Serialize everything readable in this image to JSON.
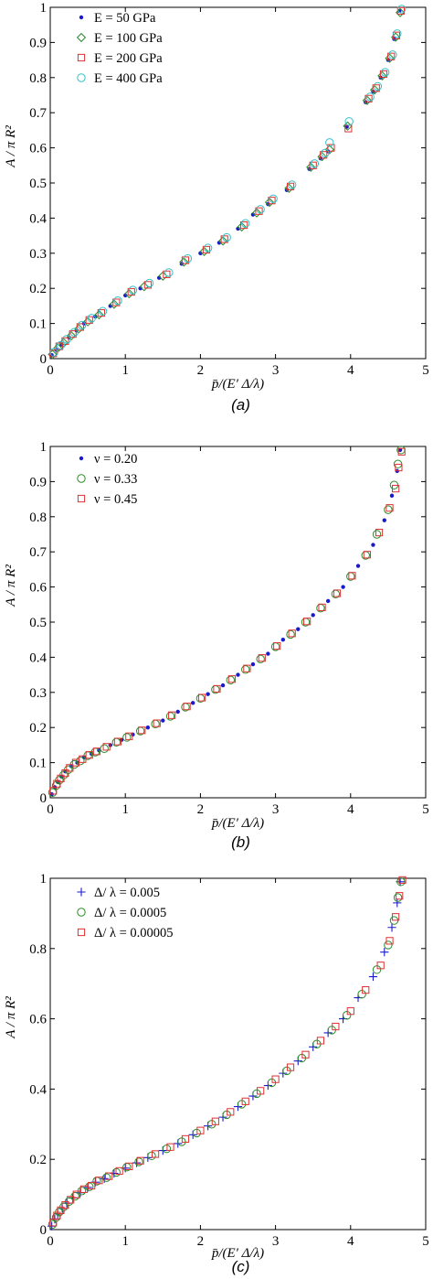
{
  "panels": [
    {
      "caption": "(a)",
      "chart_data": {
        "type": "scatter",
        "xlabel": "p̄/(E′ Δ/λ)",
        "ylabel": "A / π R²",
        "xlim": [
          0,
          5
        ],
        "ylim": [
          0,
          1
        ],
        "xticks": [
          "0",
          "1",
          "2",
          "3",
          "4",
          "5"
        ],
        "yticks": [
          "0",
          "0.1",
          "0.2",
          "0.3",
          "0.4",
          "0.5",
          "0.6",
          "0.7",
          "0.8",
          "0.9",
          "1"
        ],
        "legend_position": "top-left",
        "grid": false,
        "series": [
          {
            "name": "E = 50 GPa",
            "marker": "dot",
            "color": "#1a1acc",
            "x": [
              0.02,
              0.08,
              0.15,
              0.25,
              0.35,
              0.45,
              0.6,
              0.8,
              1.0,
              1.2,
              1.45,
              1.75,
              2.0,
              2.25,
              2.5,
              2.7,
              2.9,
              3.15,
              3.45,
              3.6,
              3.7,
              3.95,
              4.2,
              4.3,
              4.4,
              4.5,
              4.58,
              4.65
            ],
            "y": [
              0.01,
              0.025,
              0.04,
              0.06,
              0.08,
              0.1,
              0.12,
              0.15,
              0.18,
              0.2,
              0.23,
              0.27,
              0.3,
              0.33,
              0.37,
              0.41,
              0.44,
              0.48,
              0.54,
              0.57,
              0.59,
              0.66,
              0.73,
              0.76,
              0.8,
              0.85,
              0.91,
              0.99
            ]
          },
          {
            "name": "E = 100 GPa",
            "marker": "diamond",
            "color": "#2a8a2a",
            "x": [
              0.03,
              0.1,
              0.18,
              0.28,
              0.38,
              0.5,
              0.65,
              0.85,
              1.05,
              1.25,
              1.5,
              1.78,
              2.05,
              2.3,
              2.55,
              2.75,
              2.92,
              3.18,
              3.47,
              3.62,
              3.72,
              3.96,
              4.22,
              4.32,
              4.42,
              4.52,
              4.6,
              4.66
            ],
            "y": [
              0.012,
              0.03,
              0.045,
              0.065,
              0.085,
              0.105,
              0.125,
              0.155,
              0.185,
              0.205,
              0.235,
              0.275,
              0.305,
              0.335,
              0.375,
              0.415,
              0.445,
              0.485,
              0.545,
              0.575,
              0.595,
              0.662,
              0.735,
              0.765,
              0.805,
              0.855,
              0.915,
              0.985
            ]
          },
          {
            "name": "E = 200 GPa",
            "marker": "square",
            "color": "#e03030",
            "x": [
              0.04,
              0.12,
              0.2,
              0.3,
              0.4,
              0.52,
              0.68,
              0.88,
              1.08,
              1.3,
              1.55,
              1.8,
              2.08,
              2.32,
              2.58,
              2.78,
              2.95,
              3.2,
              3.5,
              3.64,
              3.74,
              3.97,
              4.24,
              4.34,
              4.44,
              4.54,
              4.61,
              4.67
            ],
            "y": [
              0.015,
              0.035,
              0.05,
              0.07,
              0.09,
              0.11,
              0.13,
              0.16,
              0.19,
              0.21,
              0.24,
              0.28,
              0.31,
              0.34,
              0.38,
              0.42,
              0.45,
              0.49,
              0.55,
              0.58,
              0.6,
              0.655,
              0.74,
              0.77,
              0.81,
              0.86,
              0.92,
              0.99
            ]
          },
          {
            "name": "E = 400 GPa",
            "marker": "circle",
            "color": "#30c0c8",
            "x": [
              0.05,
              0.14,
              0.22,
              0.32,
              0.42,
              0.55,
              0.7,
              0.9,
              1.1,
              1.32,
              1.58,
              1.83,
              2.1,
              2.35,
              2.6,
              2.8,
              2.97,
              3.22,
              3.52,
              3.66,
              3.72,
              3.98,
              4.26,
              4.36,
              4.46,
              4.56,
              4.62,
              4.68
            ],
            "y": [
              0.018,
              0.038,
              0.055,
              0.075,
              0.095,
              0.115,
              0.135,
              0.165,
              0.195,
              0.215,
              0.245,
              0.285,
              0.315,
              0.345,
              0.385,
              0.425,
              0.455,
              0.495,
              0.555,
              0.585,
              0.615,
              0.675,
              0.745,
              0.775,
              0.815,
              0.865,
              0.925,
              0.995
            ]
          }
        ]
      }
    },
    {
      "caption": "(b)",
      "chart_data": {
        "type": "scatter",
        "xlabel": "p̄/(E′ Δ/λ)",
        "ylabel": "A / π R²",
        "xlim": [
          0,
          5
        ],
        "ylim": [
          0,
          1
        ],
        "xticks": [
          "0",
          "1",
          "2",
          "3",
          "4",
          "5"
        ],
        "yticks": [
          "0",
          "0.1",
          "0.2",
          "0.3",
          "0.4",
          "0.5",
          "0.6",
          "0.7",
          "0.8",
          "0.9",
          "1"
        ],
        "legend_position": "top-left",
        "grid": false,
        "series": [
          {
            "name": "ν = 0.20",
            "marker": "dot",
            "color": "#1a1acc",
            "x": [
              0.02,
              0.06,
              0.1,
              0.15,
              0.2,
              0.28,
              0.36,
              0.45,
              0.55,
              0.65,
              0.8,
              0.95,
              1.1,
              1.3,
              1.5,
              1.7,
              1.9,
              2.1,
              2.3,
              2.5,
              2.7,
              2.9,
              3.1,
              3.3,
              3.5,
              3.7,
              3.9,
              4.1,
              4.3,
              4.45,
              4.55,
              4.62,
              4.66
            ],
            "y": [
              0.01,
              0.03,
              0.045,
              0.06,
              0.075,
              0.09,
              0.1,
              0.115,
              0.125,
              0.135,
              0.15,
              0.165,
              0.18,
              0.2,
              0.22,
              0.245,
              0.27,
              0.295,
              0.32,
              0.35,
              0.38,
              0.41,
              0.45,
              0.48,
              0.52,
              0.56,
              0.6,
              0.66,
              0.72,
              0.79,
              0.86,
              0.93,
              0.99
            ]
          },
          {
            "name": "ν = 0.33",
            "marker": "circle",
            "color": "#2a8a2a",
            "x": [
              0.03,
              0.08,
              0.12,
              0.18,
              0.24,
              0.32,
              0.4,
              0.5,
              0.6,
              0.72,
              0.88,
              1.02,
              1.2,
              1.4,
              1.6,
              1.8,
              2.0,
              2.2,
              2.4,
              2.6,
              2.8,
              3.0,
              3.2,
              3.4,
              3.6,
              3.8,
              4.0,
              4.2,
              4.35,
              4.5,
              4.58,
              4.63,
              4.67
            ],
            "y": [
              0.015,
              0.035,
              0.05,
              0.065,
              0.08,
              0.095,
              0.105,
              0.12,
              0.13,
              0.14,
              0.158,
              0.172,
              0.19,
              0.21,
              0.232,
              0.258,
              0.283,
              0.308,
              0.335,
              0.365,
              0.395,
              0.43,
              0.465,
              0.5,
              0.54,
              0.58,
              0.63,
              0.69,
              0.75,
              0.82,
              0.89,
              0.95,
              0.99
            ]
          },
          {
            "name": "ν = 0.45",
            "marker": "square",
            "color": "#e03030",
            "x": [
              0.04,
              0.09,
              0.14,
              0.2,
              0.26,
              0.34,
              0.43,
              0.52,
              0.62,
              0.75,
              0.9,
              1.05,
              1.22,
              1.42,
              1.62,
              1.82,
              2.02,
              2.22,
              2.42,
              2.62,
              2.82,
              3.02,
              3.22,
              3.42,
              3.62,
              3.82,
              4.02,
              4.22,
              4.38,
              4.52,
              4.6,
              4.64,
              4.68
            ],
            "y": [
              0.02,
              0.04,
              0.055,
              0.07,
              0.085,
              0.1,
              0.11,
              0.122,
              0.132,
              0.145,
              0.16,
              0.175,
              0.192,
              0.212,
              0.235,
              0.26,
              0.285,
              0.31,
              0.338,
              0.368,
              0.398,
              0.432,
              0.468,
              0.502,
              0.542,
              0.582,
              0.632,
              0.692,
              0.755,
              0.825,
              0.88,
              0.94,
              0.985
            ]
          }
        ]
      }
    },
    {
      "caption": "(c)",
      "chart_data": {
        "type": "scatter",
        "xlabel": "p̄/(E′ Δ/λ)",
        "ylabel": "A / π R²",
        "xlim": [
          0,
          5
        ],
        "ylim": [
          0,
          1
        ],
        "xticks": [
          "0",
          "1",
          "2",
          "3",
          "4",
          "5"
        ],
        "yticks": [
          "0",
          "0.2",
          "0.4",
          "0.6",
          "0.8",
          "1"
        ],
        "legend_position": "top-left",
        "grid": false,
        "series": [
          {
            "name": "Δ/ λ = 0.005",
            "marker": "plus",
            "color": "#1a1acc",
            "x": [
              0.02,
              0.06,
              0.1,
              0.16,
              0.22,
              0.3,
              0.4,
              0.5,
              0.6,
              0.72,
              0.85,
              1.0,
              1.15,
              1.3,
              1.5,
              1.7,
              1.9,
              2.1,
              2.3,
              2.5,
              2.7,
              2.9,
              3.1,
              3.3,
              3.5,
              3.7,
              3.9,
              4.1,
              4.3,
              4.45,
              4.55,
              4.62,
              4.66
            ],
            "y": [
              0.01,
              0.03,
              0.045,
              0.06,
              0.075,
              0.09,
              0.105,
              0.12,
              0.135,
              0.145,
              0.16,
              0.175,
              0.19,
              0.205,
              0.225,
              0.245,
              0.27,
              0.295,
              0.32,
              0.35,
              0.38,
              0.41,
              0.445,
              0.48,
              0.52,
              0.56,
              0.6,
              0.66,
              0.72,
              0.79,
              0.86,
              0.93,
              0.99
            ]
          },
          {
            "name": "Δ/ λ = 0.0005",
            "marker": "circle",
            "color": "#2a8a2a",
            "x": [
              0.03,
              0.08,
              0.12,
              0.18,
              0.25,
              0.33,
              0.42,
              0.52,
              0.62,
              0.75,
              0.88,
              1.02,
              1.18,
              1.35,
              1.55,
              1.75,
              1.95,
              2.15,
              2.35,
              2.55,
              2.75,
              2.95,
              3.15,
              3.35,
              3.55,
              3.75,
              3.95,
              4.15,
              4.35,
              4.5,
              4.58,
              4.63,
              4.67
            ],
            "y": [
              0.015,
              0.035,
              0.05,
              0.065,
              0.08,
              0.095,
              0.11,
              0.122,
              0.138,
              0.148,
              0.163,
              0.178,
              0.193,
              0.21,
              0.23,
              0.25,
              0.275,
              0.3,
              0.327,
              0.357,
              0.387,
              0.418,
              0.452,
              0.488,
              0.528,
              0.568,
              0.61,
              0.67,
              0.74,
              0.81,
              0.88,
              0.945,
              0.99
            ]
          },
          {
            "name": "Δ/ λ = 0.00005",
            "marker": "square",
            "color": "#e03030",
            "x": [
              0.04,
              0.09,
              0.14,
              0.2,
              0.27,
              0.35,
              0.45,
              0.55,
              0.65,
              0.78,
              0.92,
              1.05,
              1.2,
              1.4,
              1.6,
              1.8,
              2.0,
              2.2,
              2.4,
              2.6,
              2.8,
              3.0,
              3.2,
              3.4,
              3.6,
              3.8,
              4.0,
              4.2,
              4.4,
              4.52,
              4.6,
              4.65,
              4.69
            ],
            "y": [
              0.02,
              0.04,
              0.055,
              0.07,
              0.085,
              0.1,
              0.115,
              0.125,
              0.14,
              0.152,
              0.167,
              0.18,
              0.196,
              0.215,
              0.235,
              0.258,
              0.282,
              0.308,
              0.335,
              0.365,
              0.395,
              0.428,
              0.462,
              0.498,
              0.538,
              0.578,
              0.622,
              0.682,
              0.752,
              0.822,
              0.89,
              0.95,
              0.995
            ]
          }
        ]
      }
    }
  ]
}
